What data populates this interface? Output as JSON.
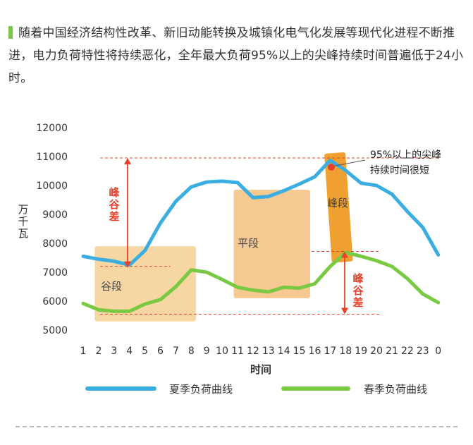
{
  "intro_text": "随着中国经济结构性改革、新旧动能转换及城镇化电气化发展等现代化进程不断推进，电力负荷特性将持续恶化，全年最大负荷95%以上的尖峰持续时间普遍低于24小时。",
  "chart_data": {
    "type": "line",
    "title": "",
    "ylabel": "万千瓦",
    "xlabel": "时间",
    "ylim": [
      5000,
      12000
    ],
    "yticks": [
      5000,
      6000,
      7000,
      8000,
      9000,
      10000,
      11000,
      12000
    ],
    "categories": [
      "1",
      "2",
      "3",
      "4",
      "5",
      "6",
      "7",
      "8",
      "9",
      "10",
      "11",
      "12",
      "13",
      "14",
      "15",
      "16",
      "17",
      "18",
      "19",
      "20",
      "21",
      "22",
      "23",
      "0"
    ],
    "series": [
      {
        "name": "夏季负荷曲线",
        "color": "#3aaee0",
        "values": [
          7550,
          7450,
          7380,
          7250,
          7750,
          8700,
          9450,
          9950,
          10120,
          10150,
          10100,
          9580,
          9620,
          9820,
          10050,
          10300,
          10870,
          10520,
          10080,
          10000,
          9700,
          9100,
          8550,
          7600
        ]
      },
      {
        "name": "春季负荷曲线",
        "color": "#7ac943",
        "values": [
          5920,
          5700,
          5650,
          5650,
          5900,
          6050,
          6500,
          7080,
          7000,
          6750,
          6480,
          6380,
          6320,
          6480,
          6450,
          6600,
          7200,
          7680,
          7550,
          7400,
          7200,
          6780,
          6250,
          5950
        ]
      }
    ],
    "segments": [
      {
        "label": "谷段",
        "color": "#f5cf92"
      },
      {
        "label": "平段",
        "color": "#f5c080"
      },
      {
        "label": "峰段",
        "color": "#f0a030"
      }
    ],
    "annotations": {
      "peak_note_line1": "95%以上的尖峰",
      "peak_note_line2": "持续时间很短",
      "left_diff_label": "峰谷差",
      "right_diff_label": "峰谷差",
      "diff_color": "#e8402a",
      "refs": {
        "summer_max": 10950,
        "summer_min": 7200,
        "spring_max": 7720,
        "spring_min": 5550
      }
    },
    "legend_position": "bottom"
  }
}
